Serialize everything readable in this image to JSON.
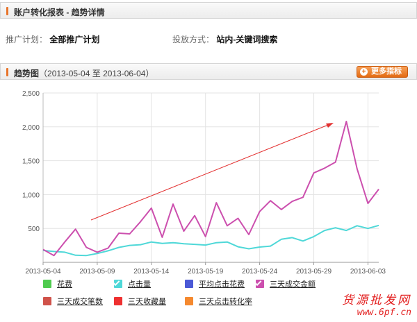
{
  "header": {
    "title": "账户转化报表 - 趋势详情"
  },
  "info": {
    "plan_label": "推广计划：",
    "plan_value": "全部推广计划",
    "method_label": "投放方式：",
    "method_value": "站内-关键词搜索"
  },
  "trend": {
    "title": "趋势图",
    "range": "（2013-05-04 至 2013-06-04）",
    "more_label": "更多指标"
  },
  "legend": {
    "items": [
      {
        "label": "花费",
        "color": "#4fcb4f",
        "checked": false
      },
      {
        "label": "点击量",
        "color": "#4fd8d8",
        "checked": true
      },
      {
        "label": "平均点击花费",
        "color": "#4b59d6",
        "checked": false
      },
      {
        "label": "三天成交金额",
        "color": "#cc4fae",
        "checked": true
      },
      {
        "label": "三天成交笔数",
        "color": "#d0524a",
        "checked": false
      },
      {
        "label": "三天收藏量",
        "color": "#ee3030",
        "checked": false
      },
      {
        "label": "三天点击转化率",
        "color": "#f5892f",
        "checked": false
      }
    ]
  },
  "chart_data": {
    "type": "line",
    "ylim": [
      0,
      2500
    ],
    "yticks": [
      "2,500",
      "2,000",
      "1,500",
      "1,000",
      "500"
    ],
    "ytick_values": [
      2500,
      2000,
      1500,
      1000,
      500
    ],
    "xtick_labels": [
      "2013-05-04",
      "2013-05-09",
      "2013-05-14",
      "2013-05-19",
      "2013-05-24",
      "2013-05-29",
      "2013-06-03"
    ],
    "x": [
      "05-04",
      "05-05",
      "05-06",
      "05-07",
      "05-08",
      "05-09",
      "05-10",
      "05-11",
      "05-12",
      "05-13",
      "05-14",
      "05-15",
      "05-16",
      "05-17",
      "05-18",
      "05-19",
      "05-20",
      "05-21",
      "05-22",
      "05-23",
      "05-24",
      "05-25",
      "05-26",
      "05-27",
      "05-28",
      "05-29",
      "05-30",
      "05-31",
      "06-01",
      "06-02",
      "06-03",
      "06-04"
    ],
    "series": [
      {
        "name": "点击量",
        "color": "#4fd8d8",
        "values": [
          175,
          160,
          150,
          105,
          100,
          130,
          170,
          220,
          250,
          260,
          300,
          280,
          290,
          275,
          265,
          255,
          290,
          300,
          230,
          200,
          225,
          240,
          340,
          365,
          315,
          380,
          470,
          510,
          470,
          540,
          500,
          545
        ]
      },
      {
        "name": "三天成交金额",
        "color": "#cc4fae",
        "values": [
          190,
          100,
          300,
          490,
          220,
          150,
          210,
          430,
          420,
          600,
          800,
          370,
          860,
          460,
          690,
          380,
          880,
          540,
          650,
          410,
          750,
          910,
          780,
          900,
          960,
          1320,
          1390,
          1480,
          2080,
          1380,
          870,
          1080
        ]
      }
    ],
    "grid": true,
    "legend_position": "bottom"
  }
}
